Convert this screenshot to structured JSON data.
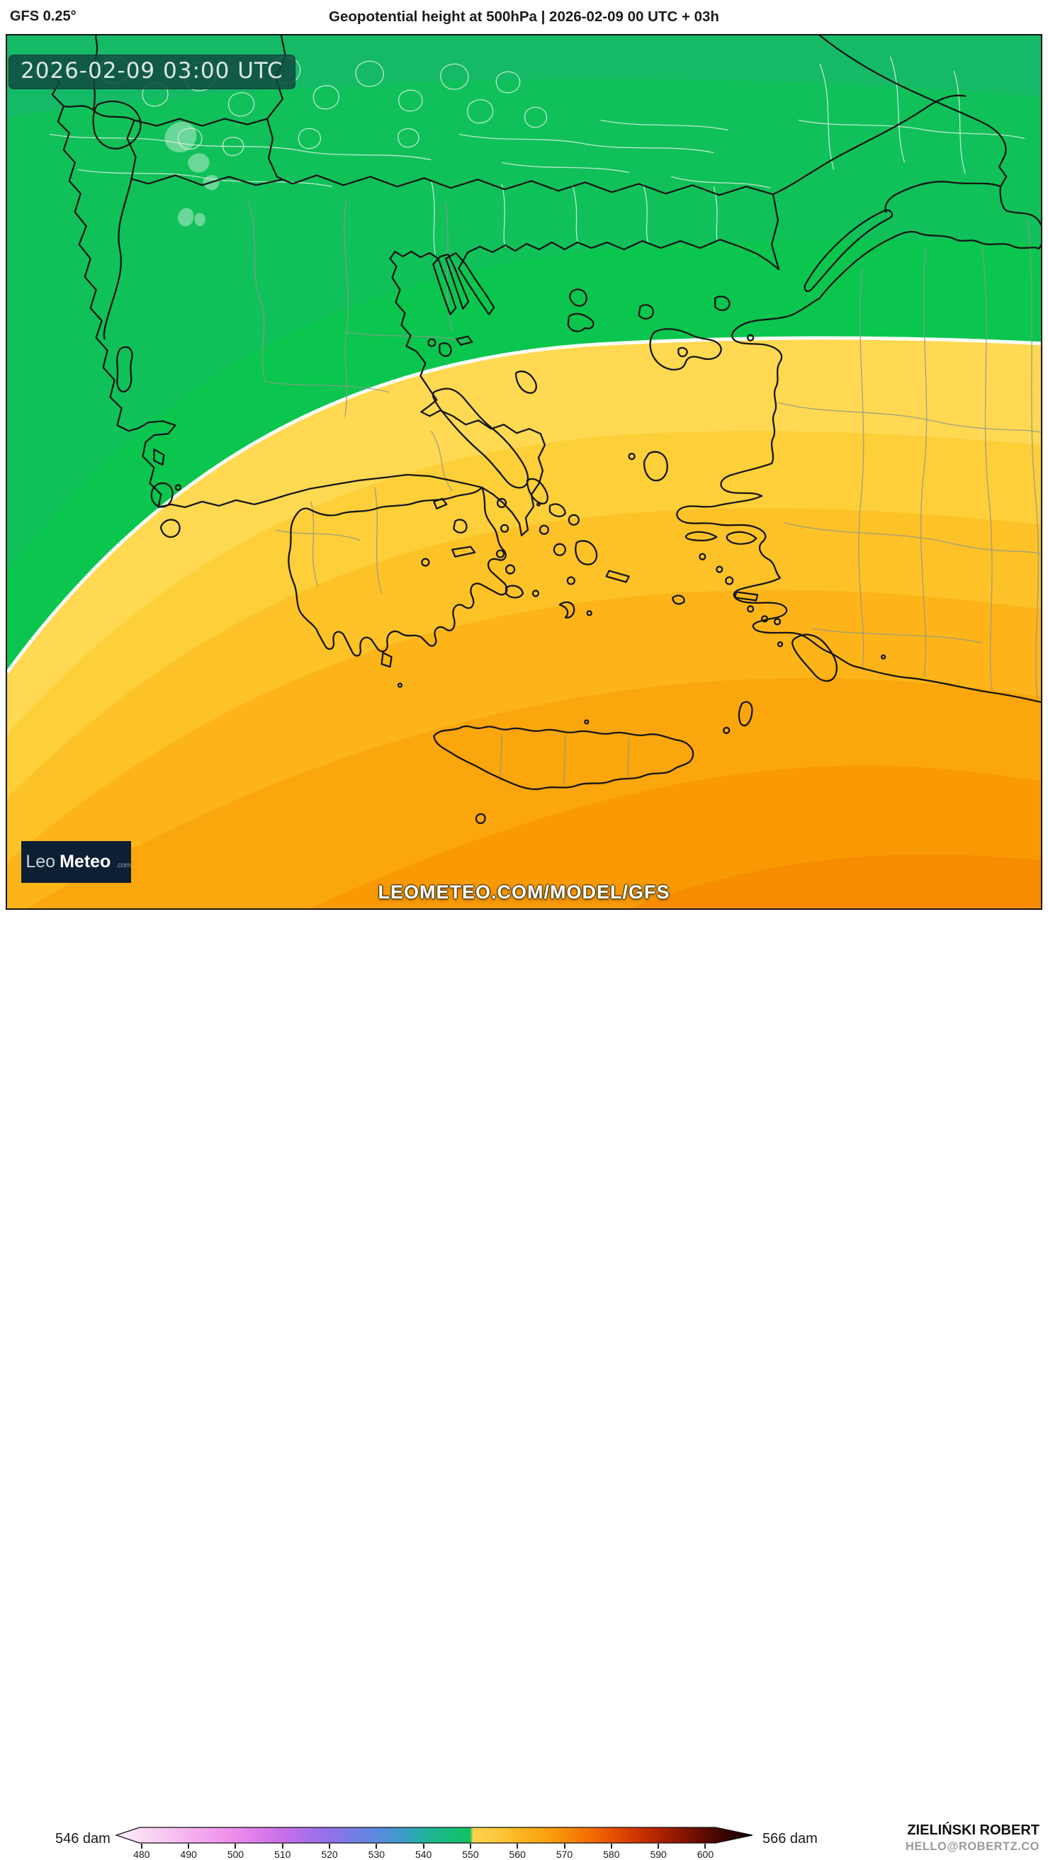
{
  "header": {
    "model": "GFS 0.25°",
    "title": "Geopotential height at 500hPa | 2026-02-09 00 UTC + 03h"
  },
  "map": {
    "timestamp_badge": "2026-02-09 03:00 UTC",
    "watermark": "LEOMETEO.COM/MODEL/GFS",
    "logo": {
      "brand_light": "Leo",
      "brand_bold": "Meteo",
      "tld": ".com"
    },
    "contour_line_color": "#ffffff",
    "band_colors": [
      "#15ba66",
      "#10c15a",
      "#0ac64e",
      "#ffd951",
      "#fdcf38",
      "#fdc227",
      "#fcb418",
      "#faa60c",
      "#f99903",
      "#f78c00"
    ]
  },
  "colorbar": {
    "min_label": "546 dam",
    "max_label": "566 dam",
    "ticks": [
      "480",
      "490",
      "500",
      "510",
      "520",
      "530",
      "540",
      "550",
      "560",
      "570",
      "580",
      "590",
      "600"
    ],
    "gradient": [
      [
        0.0,
        "#fdeffa"
      ],
      [
        0.04,
        "#fadcf5"
      ],
      [
        0.115,
        "#f5b1ef"
      ],
      [
        0.19,
        "#ec8beb"
      ],
      [
        0.26,
        "#c96fe9"
      ],
      [
        0.335,
        "#9071ea"
      ],
      [
        0.41,
        "#5b8ae0"
      ],
      [
        0.455,
        "#38a0c6"
      ],
      [
        0.485,
        "#22b39e"
      ],
      [
        0.52,
        "#18bc7f"
      ],
      [
        0.556,
        "#13c160"
      ],
      [
        0.561,
        "#fdd44e"
      ],
      [
        0.6,
        "#fcc83b"
      ],
      [
        0.631,
        "#fbb723"
      ],
      [
        0.67,
        "#faa410"
      ],
      [
        0.705,
        "#f98d08"
      ],
      [
        0.74,
        "#f47102"
      ],
      [
        0.778,
        "#e65200"
      ],
      [
        0.815,
        "#d03700"
      ],
      [
        0.852,
        "#b02400"
      ],
      [
        0.89,
        "#871500"
      ],
      [
        0.926,
        "#5d0a00"
      ],
      [
        0.962,
        "#330400"
      ],
      [
        1.0,
        "#150100"
      ]
    ]
  },
  "credits": {
    "author": "ZIELIŃSKI ROBERT",
    "contact": "HELLO@ROBERTZ.CO"
  }
}
